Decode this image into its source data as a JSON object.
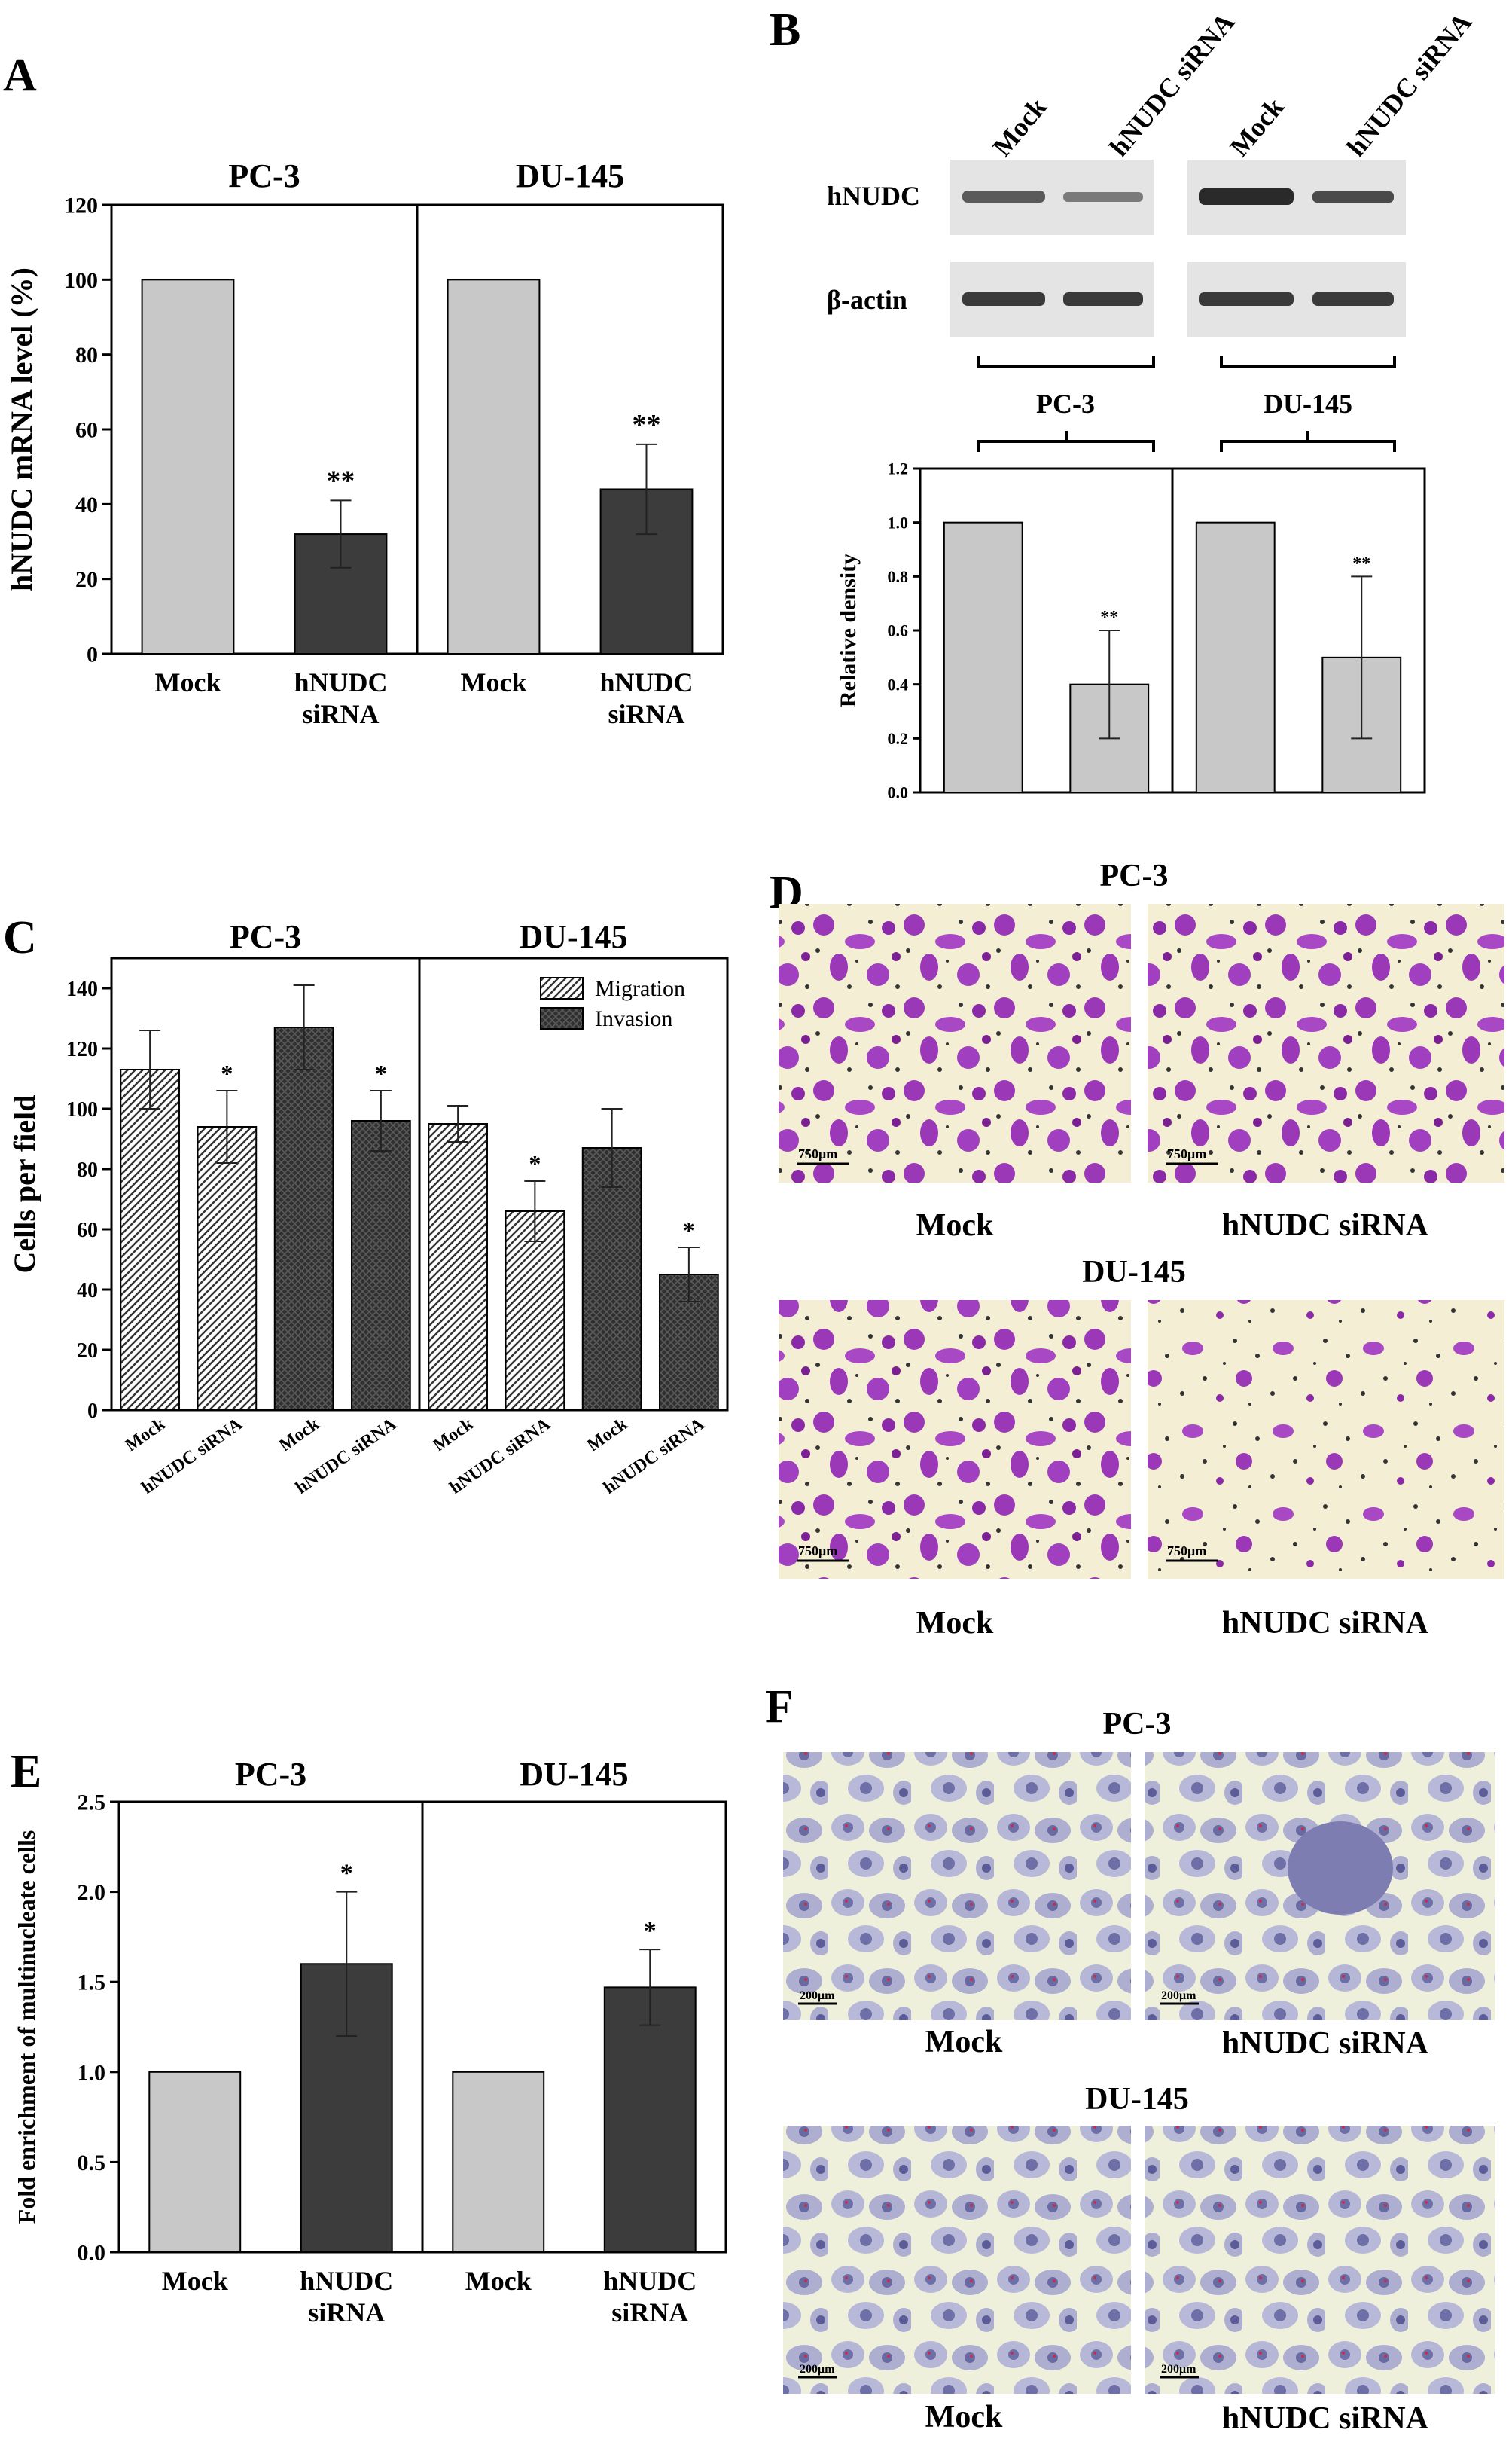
{
  "panels": {
    "A": {
      "letter": "A",
      "chart_data": {
        "type": "bar",
        "groups": [
          "PC-3",
          "DU-145"
        ],
        "categories": [
          "Mock",
          "hNUDC siRNA",
          "Mock",
          "hNUDC siRNA"
        ],
        "values": [
          100,
          32,
          100,
          44
        ],
        "errors": [
          0,
          9,
          0,
          12
        ],
        "significance": [
          "",
          "**",
          "",
          "**"
        ],
        "colors": [
          "#c8c8c8",
          "#3c3c3c",
          "#c8c8c8",
          "#3c3c3c"
        ],
        "ylabel": "hNUDC mRNA level (%)",
        "ylim": [
          0,
          120
        ],
        "yticks": [
          0,
          20,
          40,
          60,
          80,
          100,
          120
        ],
        "xlabels": [
          [
            "Mock"
          ],
          [
            "hNUDC",
            "siRNA"
          ],
          [
            "Mock"
          ],
          [
            "hNUDC",
            "siRNA"
          ]
        ]
      }
    },
    "B": {
      "letter": "B",
      "blot": {
        "lane_labels": [
          "Mock",
          "hNUDC siRNA",
          "Mock",
          "hNUDC siRNA"
        ],
        "row_labels": [
          "hNUDC",
          "β-actin"
        ],
        "groups": [
          "PC-3",
          "DU-145"
        ]
      },
      "chart_data": {
        "type": "bar",
        "groups": [
          "PC-3",
          "DU-145"
        ],
        "categories": [
          "Mock",
          "hNUDC siRNA",
          "Mock",
          "hNUDC siRNA"
        ],
        "values": [
          1.0,
          0.4,
          1.0,
          0.5
        ],
        "errors": [
          0,
          0.2,
          0,
          0.3
        ],
        "significance": [
          "",
          "**",
          "",
          "**"
        ],
        "colors": [
          "#c8c8c8",
          "#c8c8c8",
          "#c8c8c8",
          "#c8c8c8"
        ],
        "ylabel": "Relative   density",
        "ylim": [
          0,
          1.2
        ],
        "yticks": [
          "0.0",
          "0.2",
          "0.4",
          "0.6",
          "0.8",
          "1.0",
          "1.2"
        ]
      }
    },
    "C": {
      "letter": "C",
      "chart_data": {
        "type": "bar",
        "groups": [
          "PC-3",
          "DU-145"
        ],
        "categories": [
          "Mock",
          "hNUDC siRNA",
          "Mock",
          "hNUDC siRNA",
          "Mock",
          "hNUDC siRNA",
          "Mock",
          "hNUDC siRNA"
        ],
        "series_of_bar": [
          "Migration",
          "Migration",
          "Invasion",
          "Invasion",
          "Migration",
          "Migration",
          "Invasion",
          "Invasion"
        ],
        "values": [
          113,
          94,
          127,
          96,
          95,
          66,
          87,
          45
        ],
        "errors": [
          13,
          12,
          14,
          10,
          6,
          10,
          13,
          9
        ],
        "significance": [
          "",
          "*",
          "",
          "*",
          "",
          "*",
          "",
          "*"
        ],
        "legend": [
          "Migration",
          "Invasion"
        ],
        "ylabel": "Cells per field",
        "ylim": [
          0,
          150
        ],
        "yticks": [
          0,
          20,
          40,
          60,
          80,
          100,
          120,
          140
        ]
      }
    },
    "D": {
      "letter": "D",
      "rows": [
        {
          "title": "PC-3",
          "captions": [
            "Mock",
            "hNUDC siRNA"
          ]
        },
        {
          "title": "DU-145",
          "captions": [
            "Mock",
            "hNUDC siRNA"
          ]
        }
      ],
      "scale_label": "750μm",
      "color": "#9a38b8"
    },
    "E": {
      "letter": "E",
      "chart_data": {
        "type": "bar",
        "groups": [
          "PC-3",
          "DU-145"
        ],
        "categories": [
          "Mock",
          "hNUDC siRNA",
          "Mock",
          "hNUDC siRNA"
        ],
        "values": [
          1.0,
          1.6,
          1.0,
          1.47
        ],
        "errors": [
          0,
          0.4,
          0,
          0.21
        ],
        "significance": [
          "",
          "*",
          "",
          "*"
        ],
        "colors": [
          "#c8c8c8",
          "#3c3c3c",
          "#c8c8c8",
          "#3c3c3c"
        ],
        "ylabel": "Fold enrichment of multinucleate cells",
        "ylim": [
          0,
          2.5
        ],
        "yticks": [
          "0.0",
          "0.5",
          "1.0",
          "1.5",
          "2.0",
          "2.5"
        ],
        "xlabels": [
          [
            "Mock"
          ],
          [
            "hNUDC",
            "siRNA"
          ],
          [
            "Mock"
          ],
          [
            "hNUDC",
            "siRNA"
          ]
        ]
      }
    },
    "F": {
      "letter": "F",
      "rows": [
        {
          "title": "PC-3",
          "captions": [
            "Mock",
            "hNUDC siRNA"
          ]
        },
        {
          "title": "DU-145",
          "captions": [
            "Mock",
            "hNUDC siRNA"
          ]
        }
      ],
      "scale_label": "200μm",
      "color": "#6f6fa8"
    }
  }
}
